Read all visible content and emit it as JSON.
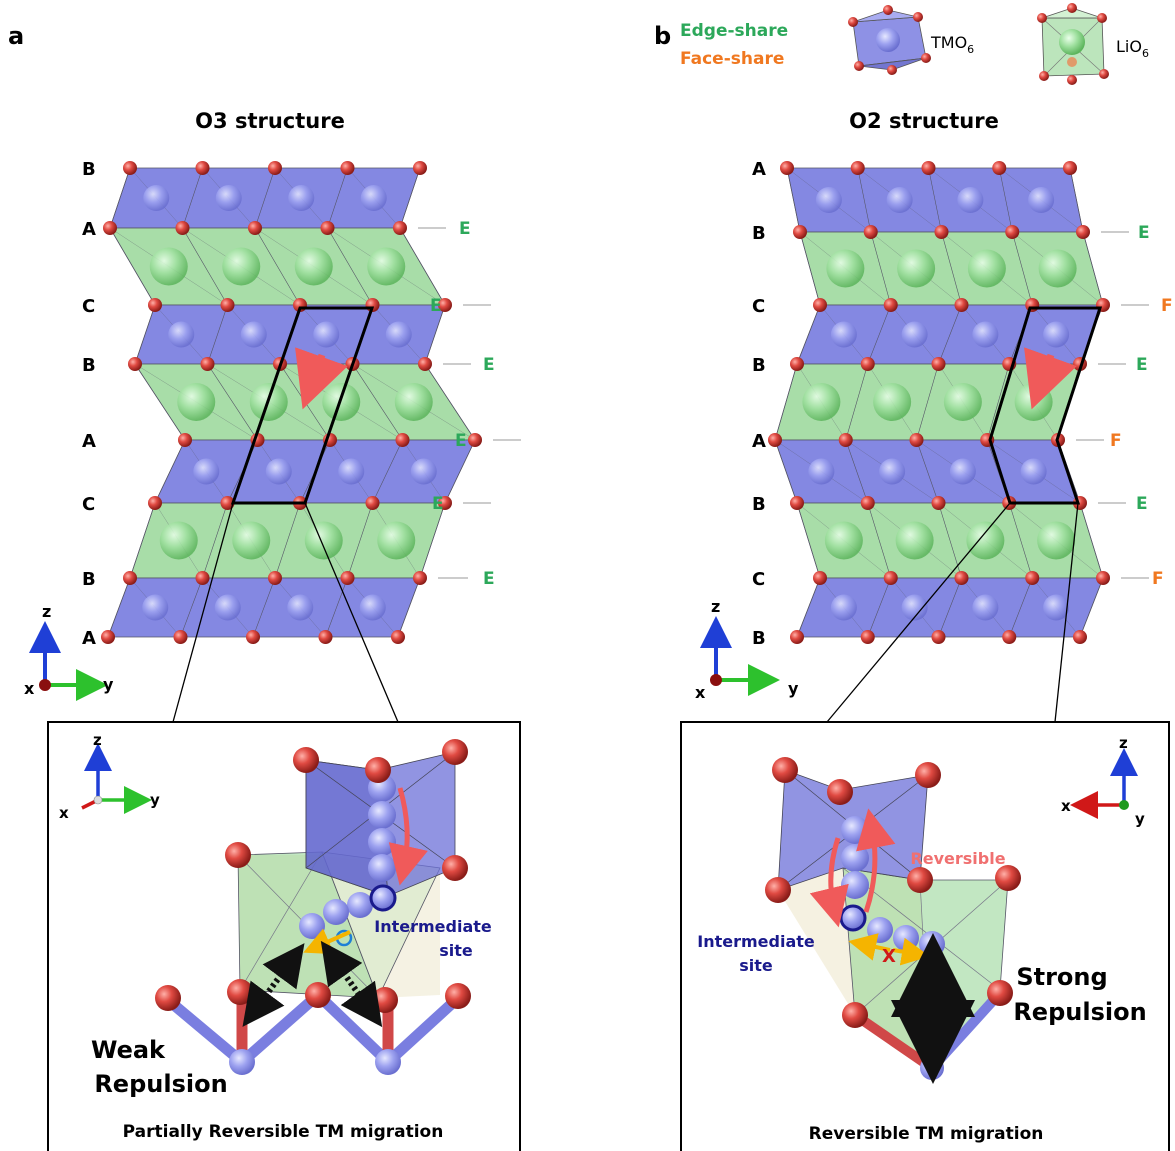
{
  "panel_a": {
    "letter": "a",
    "title": "O3 structure",
    "layers": [
      "B",
      "A",
      "C",
      "B",
      "A",
      "C",
      "B",
      "A"
    ],
    "boundaries": [
      "E",
      "E",
      "E",
      "E",
      "E",
      "E"
    ],
    "axes": {
      "z": "z",
      "x": "x",
      "y": "y"
    },
    "inset": {
      "axes": {
        "z": "z",
        "x": "x",
        "y": "y"
      },
      "site_label_1": "Intermediate",
      "site_label_2": "site",
      "repulsion_1": "Weak",
      "repulsion_2": "Repulsion",
      "caption": "Partially Reversible TM migration"
    }
  },
  "panel_b": {
    "letter": "b",
    "title": "O2 structure",
    "layers": [
      "A",
      "B",
      "C",
      "B",
      "A",
      "B",
      "C",
      "B"
    ],
    "boundaries": [
      "E",
      "F",
      "E",
      "F",
      "E",
      "F"
    ],
    "axes": {
      "z": "z",
      "x": "x",
      "y": "y"
    },
    "inset": {
      "axes": {
        "z": "z",
        "x": "x",
        "y": "y"
      },
      "reversible": "Reversible",
      "blocked": "X",
      "site_label_1": "Intermediate",
      "site_label_2": "site",
      "repulsion_1": "Strong",
      "repulsion_2": "Repulsion",
      "caption": "Reversible TM migration"
    }
  },
  "legend": {
    "edge_share": "Edge-share",
    "face_share": "Face-share",
    "tm_label": "TMO",
    "li_label": "LiO",
    "subscript": "6"
  },
  "colors": {
    "edge": "#2ca85a",
    "face": "#f07820",
    "tm_fill": "#7a7ee0",
    "li_fill": "#8fd48f",
    "oxygen": "#d94040",
    "arrow_red": "#f05a5a",
    "arrow_yellow": "#f5b400",
    "site_blue": "#1a1a8c"
  }
}
